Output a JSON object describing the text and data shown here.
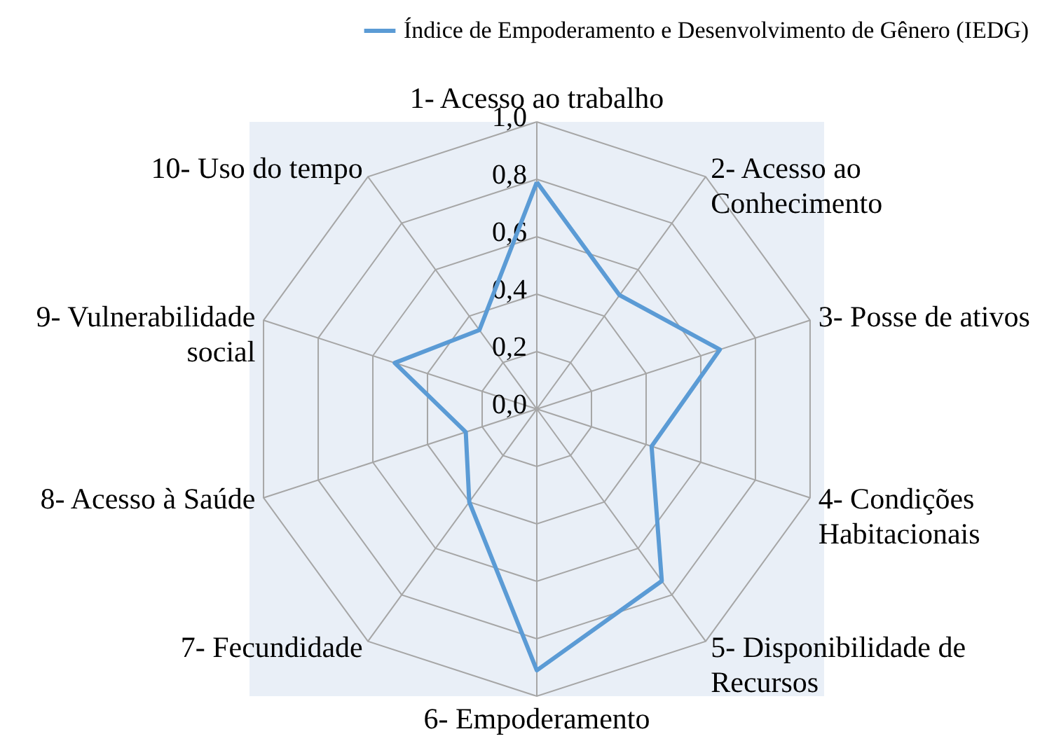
{
  "chart_data": {
    "type": "radar",
    "legend": "top",
    "grid": true,
    "categories": [
      "1- Acesso ao trabalho",
      "2- Acesso ao Conhecimento",
      "3- Posse de ativos",
      "4- Condições Habitacionais",
      "5- Disponibilidade de Recursos",
      "6- Empoderamento",
      "7- Fecundidade",
      "8- Acesso à Saúde",
      "9- Vulnerabilidade social",
      "10- Uso do tempo"
    ],
    "series": [
      {
        "name": "Índice de Empoderamento e Desenvolvimento de Gênero  (IEDG)",
        "color": "#5b9bd5",
        "values": [
          0.79,
          0.49,
          0.67,
          0.42,
          0.74,
          0.91,
          0.4,
          0.26,
          0.52,
          0.34
        ]
      }
    ],
    "ylim": [
      0,
      1
    ],
    "yticks": [
      {
        "value": 0,
        "label": "0,0"
      },
      {
        "value": 0.2,
        "label": "0,2"
      },
      {
        "value": 0.4,
        "label": "0,4"
      },
      {
        "value": 0.6,
        "label": "0,6"
      },
      {
        "value": 0.8,
        "label": "0,8"
      },
      {
        "value": 1,
        "label": "1,0"
      }
    ]
  }
}
